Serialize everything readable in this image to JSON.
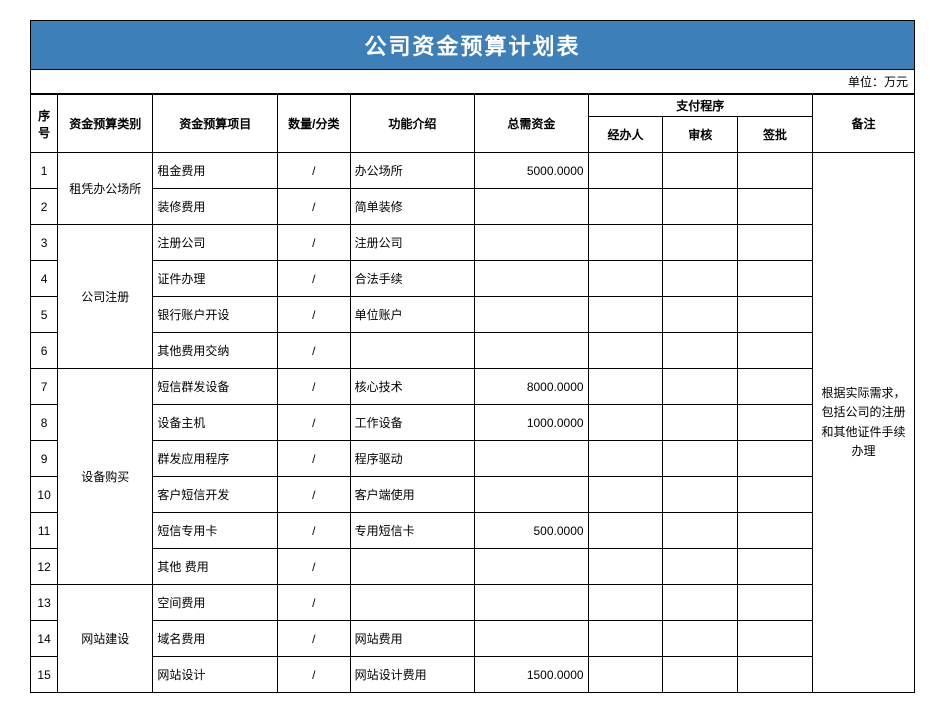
{
  "title": "公司资金预算计划表",
  "title_bg": "#3d7fb8",
  "title_fg": "#ffffff",
  "title_fontsize": "22px",
  "unit_label": "单位：万元",
  "headers": {
    "no": "序号",
    "category": "资金预算类别",
    "item": "资金预算项目",
    "qty": "数量/分类",
    "func": "功能介绍",
    "amount": "总需资金",
    "pay_group": "支付程序",
    "pay_handler": "经办人",
    "pay_review": "审核",
    "pay_approve": "签批",
    "note": "备注"
  },
  "categories": [
    {
      "name": "租凭办公场所",
      "rows": [
        {
          "no": "1",
          "item": "租金费用",
          "qty": "/",
          "func": "办公场所",
          "amount": "5000.0000"
        },
        {
          "no": "2",
          "item": "装修费用",
          "qty": "/",
          "func": "简单装修",
          "amount": ""
        }
      ]
    },
    {
      "name": "公司注册",
      "rows": [
        {
          "no": "3",
          "item": "注册公司",
          "qty": "/",
          "func": "注册公司",
          "amount": ""
        },
        {
          "no": "4",
          "item": "证件办理",
          "qty": "/",
          "func": "合法手续",
          "amount": ""
        },
        {
          "no": "5",
          "item": "银行账户开设",
          "qty": "/",
          "func": "单位账户",
          "amount": ""
        },
        {
          "no": "6",
          "item": "其他费用交纳",
          "qty": "/",
          "func": "",
          "amount": ""
        }
      ]
    },
    {
      "name": "设备购买",
      "rows": [
        {
          "no": "7",
          "item": "短信群发设备",
          "qty": "/",
          "func": "核心技术",
          "amount": "8000.0000"
        },
        {
          "no": "8",
          "item": "设备主机",
          "qty": "/",
          "func": "工作设备",
          "amount": "1000.0000"
        },
        {
          "no": "9",
          "item": "群发应用程序",
          "qty": "/",
          "func": "程序驱动",
          "amount": ""
        },
        {
          "no": "10",
          "item": "客户短信开发",
          "qty": "/",
          "func": "客户端使用",
          "amount": ""
        },
        {
          "no": "11",
          "item": "短信专用卡",
          "qty": "/",
          "func": "专用短信卡",
          "amount": "500.0000"
        },
        {
          "no": "12",
          "item": "其他 费用",
          "qty": "/",
          "func": "",
          "amount": ""
        }
      ]
    },
    {
      "name": "网站建设",
      "rows": [
        {
          "no": "13",
          "item": "空间费用",
          "qty": "/",
          "func": "",
          "amount": ""
        },
        {
          "no": "14",
          "item": "域名费用",
          "qty": "/",
          "func": "网站费用",
          "amount": ""
        },
        {
          "no": "15",
          "item": "网站设计",
          "qty": "/",
          "func": "网站设计费用",
          "amount": "1500.0000"
        }
      ]
    }
  ],
  "merged_note": "根据实际需求，包括公司的注册和其他证件手续办理"
}
